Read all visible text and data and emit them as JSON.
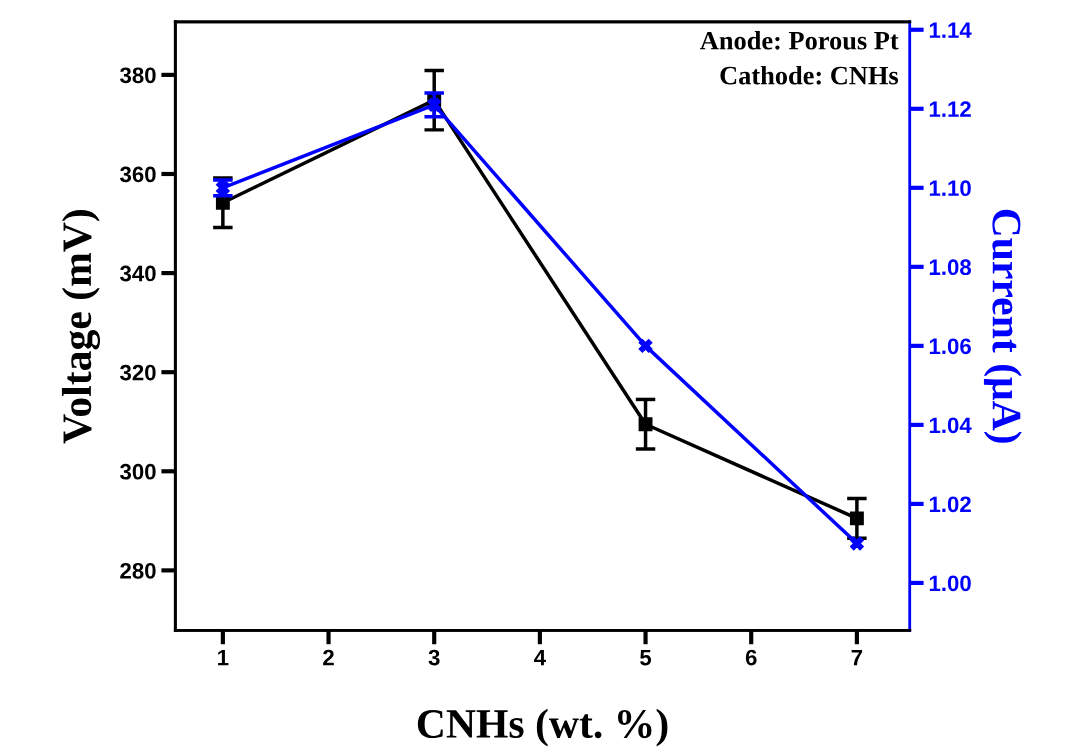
{
  "chart_data": {
    "type": "line",
    "xlabel": "CNHs (wt. %)",
    "ylabel": "Voltage (mV)",
    "y2label": "Current (μA)",
    "x": [
      1,
      3,
      5,
      7
    ],
    "series": [
      {
        "color": "#000000",
        "marker": "square",
        "values": [
          354.2,
          374.9,
          309.5,
          290.5
        ],
        "errors": [
          5,
          6,
          5,
          4
        ]
      },
      {
        "color": "#0000ff",
        "marker": "cross",
        "axis": "y2",
        "values": [
          1.1,
          1.121,
          1.06,
          1.01
        ],
        "errors": [
          0.002,
          0.003,
          null,
          null
        ]
      }
    ],
    "xlim": [
      0.55,
      7.5
    ],
    "xticks": [
      1,
      2,
      3,
      4,
      5,
      6,
      7
    ],
    "ylim": [
      267.9,
      390.7
    ],
    "yticks": [
      280,
      300,
      320,
      340,
      360,
      380
    ],
    "y2lim": [
      0.988,
      1.142
    ],
    "y2ticks": [
      {
        "value": 1.0,
        "label": "1.00"
      },
      {
        "value": 1.02,
        "label": "1.02"
      },
      {
        "value": 1.04,
        "label": "1.04"
      },
      {
        "value": 1.06,
        "label": "1.06"
      },
      {
        "value": 1.08,
        "label": "1.08"
      },
      {
        "value": 1.1,
        "label": "1.10"
      },
      {
        "value": 1.12,
        "label": "1.12"
      },
      {
        "value": 1.14,
        "label": "1.14"
      }
    ],
    "annotations": [
      "Anode: Porous Pt\nCathode: CNHs"
    ],
    "grid": false,
    "legend": false,
    "line_style": "solid"
  }
}
